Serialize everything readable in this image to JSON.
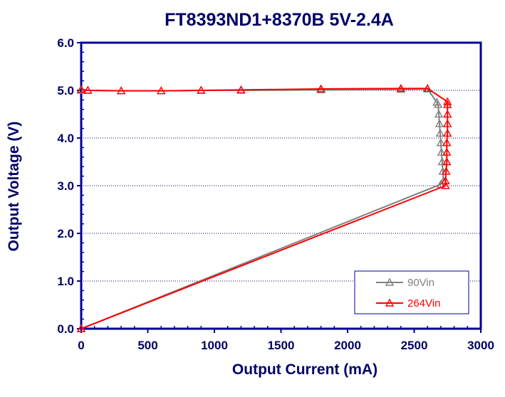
{
  "chart_data": {
    "type": "line",
    "title": "FT8393ND1+8370B   5V-2.4A",
    "xlabel": "Output Current (mA)",
    "ylabel": "Output Voltage (V)",
    "xlim": [
      0,
      3000
    ],
    "ylim": [
      0,
      6
    ],
    "xticks": [
      0,
      500,
      1000,
      1500,
      2000,
      2500,
      3000
    ],
    "yticks": [
      0,
      1,
      2,
      3,
      4,
      5,
      6
    ],
    "xtick_labels": [
      "0",
      "500",
      "1000",
      "1500",
      "2000",
      "2500",
      "3000"
    ],
    "ytick_labels": [
      "0.0",
      "1.0",
      "2.0",
      "3.0",
      "4.0",
      "5.0",
      "6.0"
    ],
    "grid": "horizontal dotted",
    "legend_position": "bottom-right",
    "series": [
      {
        "name": "90Vin",
        "color": "#808080",
        "marker": "triangle-open",
        "x": [
          0,
          50,
          300,
          600,
          900,
          1200,
          1800,
          2400,
          2600,
          2670,
          2680,
          2685,
          2690,
          2695,
          2700,
          2705,
          2710,
          2715,
          2720,
          2700,
          0
        ],
        "y": [
          5.0,
          5.0,
          4.99,
          4.99,
          5.0,
          5.0,
          5.01,
          5.02,
          5.03,
          4.75,
          4.7,
          4.5,
          4.3,
          4.1,
          3.9,
          3.7,
          3.5,
          3.3,
          3.1,
          3.03,
          0.0
        ]
      },
      {
        "name": "264Vin",
        "color": "#ff0000",
        "marker": "triangle-open",
        "x": [
          0,
          50,
          300,
          600,
          900,
          1200,
          1800,
          2400,
          2600,
          2750,
          2750,
          2750,
          2750,
          2750,
          2745,
          2745,
          2745,
          2740,
          2735,
          2735,
          0
        ],
        "y": [
          5.02,
          5.0,
          4.99,
          4.99,
          5.0,
          5.01,
          5.03,
          5.04,
          5.04,
          4.76,
          4.7,
          4.5,
          4.3,
          4.1,
          3.9,
          3.7,
          3.5,
          3.3,
          3.1,
          3.0,
          0.0
        ]
      }
    ]
  }
}
